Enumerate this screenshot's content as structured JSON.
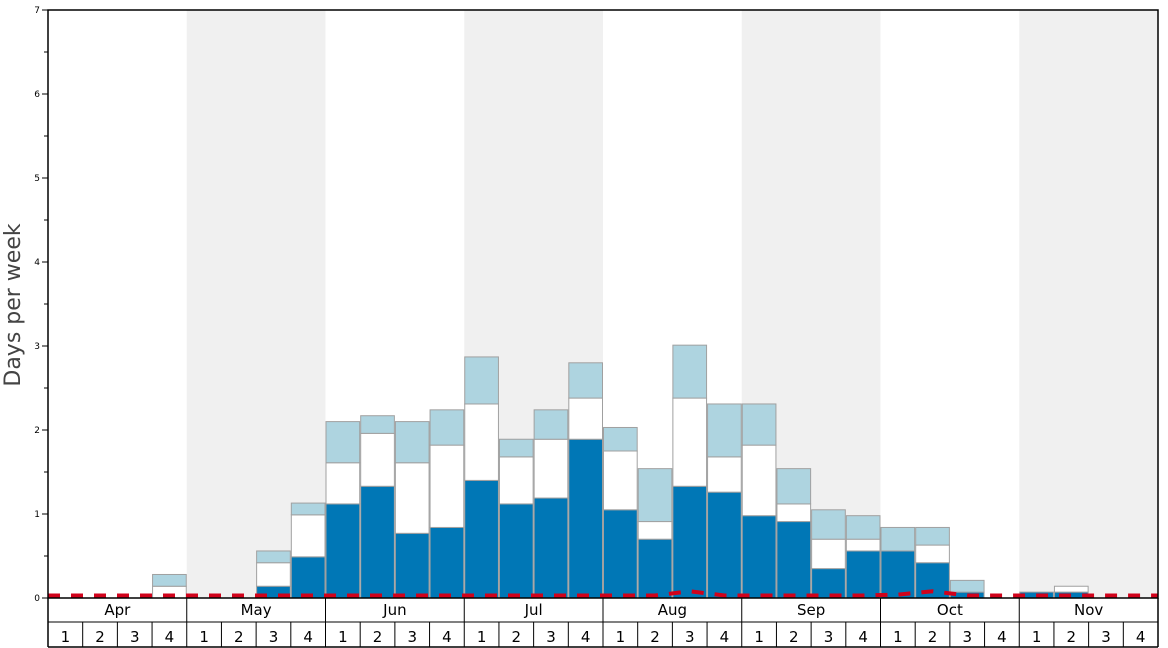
{
  "chart_data": {
    "type": "bar",
    "stacked": true,
    "ylabel": "Days per week",
    "ylim": [
      0,
      7
    ],
    "yticks": [
      "0",
      "1",
      "2",
      "3",
      "4",
      "5",
      "6",
      "7"
    ],
    "months": [
      "Apr",
      "May",
      "Jun",
      "Jul",
      "Aug",
      "Sep",
      "Oct",
      "Nov"
    ],
    "week_labels": [
      "1",
      "2",
      "3",
      "4"
    ],
    "shaded_months": [
      "May",
      "Jul",
      "Sep",
      "Nov"
    ],
    "categories": [
      "Apr 1",
      "Apr 2",
      "Apr 3",
      "Apr 4",
      "May 1",
      "May 2",
      "May 3",
      "May 4",
      "Jun 1",
      "Jun 2",
      "Jun 3",
      "Jun 4",
      "Jul 1",
      "Jul 2",
      "Jul 3",
      "Jul 4",
      "Aug 1",
      "Aug 2",
      "Aug 3",
      "Aug 4",
      "Sep 1",
      "Sep 2",
      "Sep 3",
      "Sep 4",
      "Oct 1",
      "Oct 2",
      "Oct 3",
      "Oct 4",
      "Nov 1",
      "Nov 2",
      "Nov 3",
      "Nov 4"
    ],
    "series": [
      {
        "color": "#0077b6",
        "values": [
          0,
          0,
          0,
          0,
          0,
          0,
          0.14,
          0.49,
          1.12,
          1.33,
          0.77,
          0.84,
          1.4,
          1.12,
          1.19,
          1.89,
          1.05,
          0.7,
          1.33,
          1.26,
          0.98,
          0.91,
          0.35,
          0.56,
          0.56,
          0.42,
          0.07,
          0,
          0.07,
          0.07,
          0,
          0
        ]
      },
      {
        "color": "#ffffff",
        "values": [
          0,
          0,
          0,
          0.14,
          0,
          0,
          0.28,
          0.5,
          0.49,
          0.63,
          0.84,
          0.98,
          0.91,
          0.56,
          0.7,
          0.49,
          0.7,
          0.21,
          1.05,
          0.42,
          0.84,
          0.21,
          0.35,
          0.14,
          0,
          0.21,
          0,
          0,
          0,
          0.07,
          0,
          0
        ]
      },
      {
        "color": "#aed4e0",
        "values": [
          0,
          0,
          0,
          0.14,
          0,
          0,
          0.14,
          0.14,
          0.49,
          0.21,
          0.49,
          0.42,
          0.56,
          0.21,
          0.35,
          0.42,
          0.28,
          0.63,
          0.63,
          0.63,
          0.49,
          0.42,
          0.35,
          0.28,
          0.28,
          0.21,
          0.14,
          0,
          0,
          0,
          0,
          0
        ]
      }
    ],
    "reference_line": {
      "color": "#d0021b",
      "style": "dashed",
      "values": [
        0.03,
        0.03,
        0.03,
        0.03,
        0.03,
        0.03,
        0.03,
        0.03,
        0.03,
        0.03,
        0.03,
        0.03,
        0.03,
        0.03,
        0.03,
        0.03,
        0.03,
        0.03,
        0.08,
        0.03,
        0.03,
        0.03,
        0.03,
        0.03,
        0.04,
        0.08,
        0.03,
        0.03,
        0.03,
        0.03,
        0.03,
        0.03
      ]
    },
    "grid": false,
    "legend": "none"
  }
}
